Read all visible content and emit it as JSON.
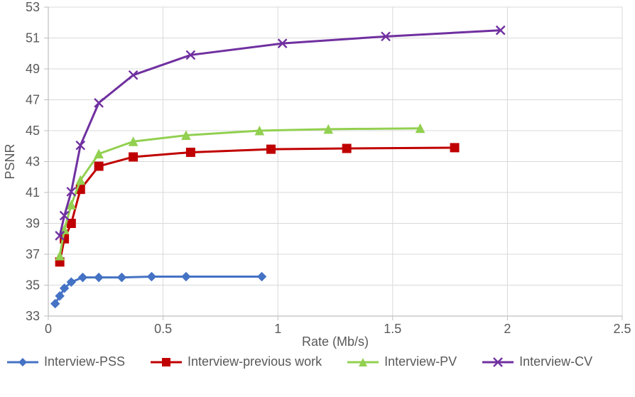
{
  "chart": {
    "type": "line",
    "background_color": "#ffffff",
    "plot_background_color": "#ffffff",
    "grid_color": "#d9d9d9",
    "axis_line_color": "#bfbfbf",
    "tick_font_size": 18,
    "label_font_size": 18,
    "legend_font_size": 18,
    "label_color": "#595959",
    "line_width": 3,
    "marker_size": 6,
    "xlabel": "Rate (Mb/s)",
    "ylabel": "PSNR",
    "xlim": [
      0,
      2.5
    ],
    "ylim": [
      33,
      53
    ],
    "xtick_step": 0.5,
    "ytick_step": 2,
    "series": [
      {
        "name": "Interview-PSS",
        "color": "#4472c4",
        "marker": "diamond",
        "x": [
          0.03,
          0.05,
          0.07,
          0.1,
          0.15,
          0.22,
          0.32,
          0.45,
          0.6,
          0.93
        ],
        "y": [
          33.8,
          34.3,
          34.8,
          35.2,
          35.5,
          35.5,
          35.5,
          35.55,
          35.55,
          35.55
        ]
      },
      {
        "name": "Interview-previous work",
        "color": "#c00000",
        "marker": "square",
        "x": [
          0.05,
          0.07,
          0.1,
          0.14,
          0.22,
          0.37,
          0.62,
          0.97,
          1.3,
          1.77
        ],
        "y": [
          36.5,
          38.0,
          39.0,
          41.2,
          42.7,
          43.3,
          43.6,
          43.8,
          43.85,
          43.9
        ]
      },
      {
        "name": "Interview-PV",
        "color": "#92d050",
        "marker": "triangle",
        "x": [
          0.05,
          0.07,
          0.1,
          0.14,
          0.22,
          0.37,
          0.6,
          0.92,
          1.22,
          1.62
        ],
        "y": [
          36.9,
          38.6,
          40.2,
          41.8,
          43.5,
          44.3,
          44.7,
          45.0,
          45.1,
          45.15
        ]
      },
      {
        "name": "Interview-CV",
        "color": "#7030a0",
        "marker": "x",
        "x": [
          0.05,
          0.07,
          0.1,
          0.14,
          0.22,
          0.37,
          0.62,
          1.02,
          1.47,
          1.97
        ],
        "y": [
          38.2,
          39.5,
          41.05,
          44.05,
          46.8,
          48.6,
          49.9,
          50.65,
          51.1,
          51.5
        ]
      }
    ]
  }
}
